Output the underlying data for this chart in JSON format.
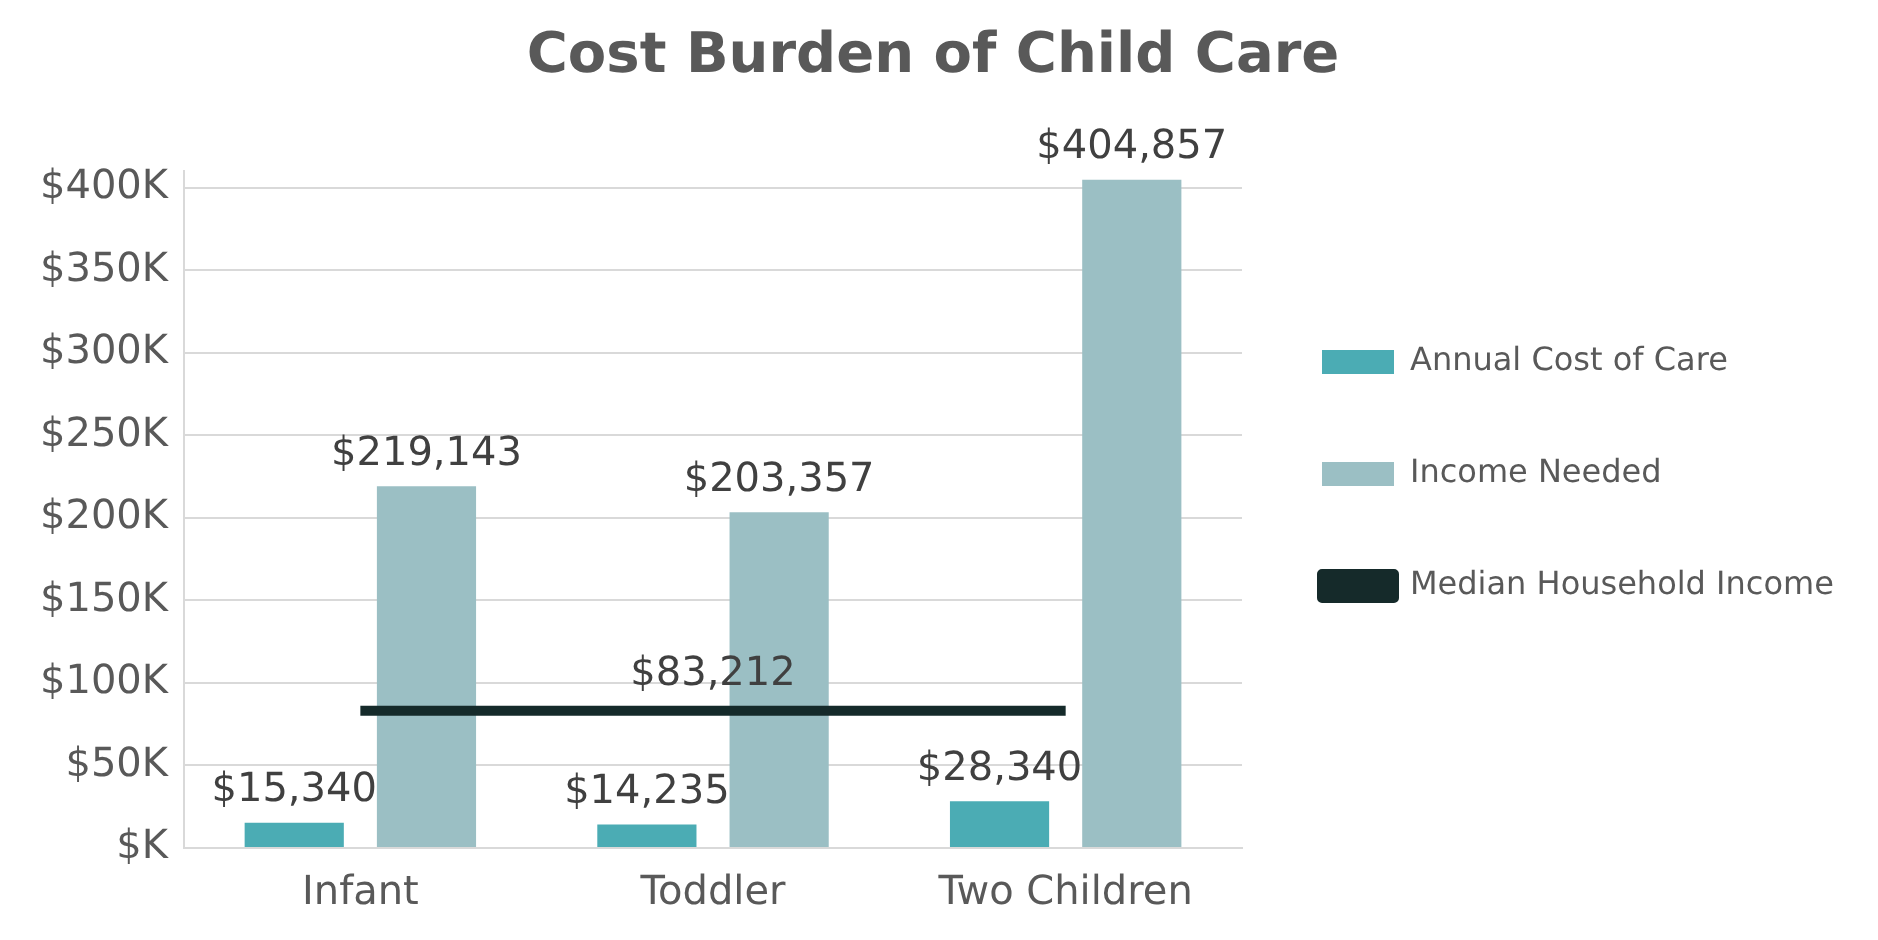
{
  "chart_data": {
    "type": "bar",
    "title": "Cost Burden of Child Care",
    "categories": [
      "Infant",
      "Toddler",
      "Two Children"
    ],
    "series": [
      {
        "name": "Annual Cost of Care",
        "color": "#4bacb4",
        "values": [
          15340,
          14235,
          28340
        ],
        "value_labels": [
          "$15,340",
          "$14,235",
          "$28,340"
        ]
      },
      {
        "name": "Income Needed",
        "color": "#9bbfc4",
        "values": [
          219143,
          203357,
          404857
        ],
        "value_labels": [
          "$219,143",
          "$203,357",
          "$404,857"
        ]
      },
      {
        "name": "Median Household Income",
        "type": "line",
        "color": "#152a2a",
        "values": [
          83212,
          83212,
          83212
        ],
        "value_labels": [
          null,
          "$83,212",
          null
        ]
      }
    ],
    "ylim": [
      0,
      410000
    ],
    "yticks": [
      {
        "value": 0,
        "label": "$K"
      },
      {
        "value": 50000,
        "label": "$50K"
      },
      {
        "value": 100000,
        "label": "$100K"
      },
      {
        "value": 150000,
        "label": "$150K"
      },
      {
        "value": 200000,
        "label": "$200K"
      },
      {
        "value": 250000,
        "label": "$250K"
      },
      {
        "value": 300000,
        "label": "$300K"
      },
      {
        "value": 350000,
        "label": "$350K"
      },
      {
        "value": 400000,
        "label": "$400K"
      }
    ],
    "grid": "y",
    "legend": "right",
    "marker": "none"
  }
}
